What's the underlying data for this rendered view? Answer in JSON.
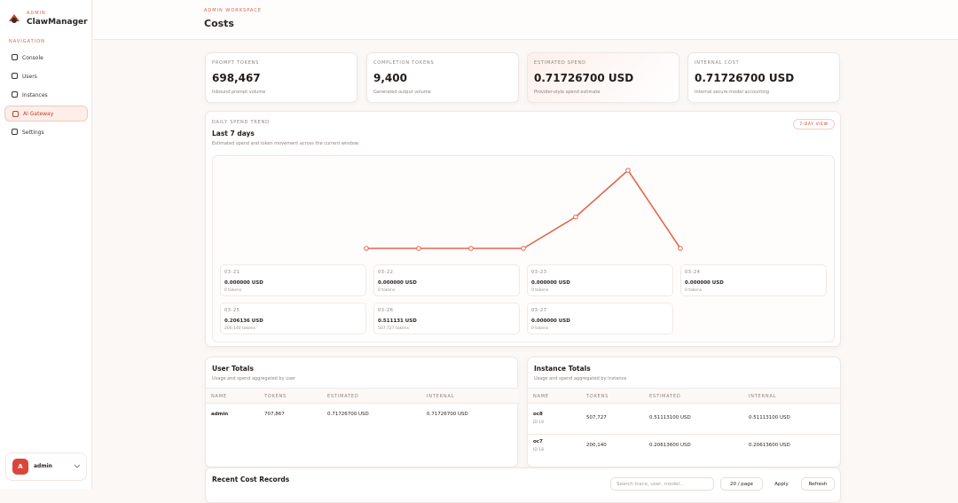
{
  "sidebar": {
    "brand_kicker": "ADMIN",
    "brand": "ClawManager",
    "nav_heading": "NAVIGATION",
    "nav": [
      "Console",
      "Users",
      "Instances",
      "AI Gateway",
      "Settings"
    ],
    "active_nav": 3,
    "user": {
      "avatar": "A",
      "name": "admin"
    }
  },
  "header": {
    "kicker": "ADMIN WORKSPACE",
    "title": "Costs"
  },
  "stats": [
    {
      "label": "PROMPT TOKENS",
      "value": "698,467",
      "note": "Inbound prompt volume"
    },
    {
      "label": "COMPLETION TOKENS",
      "value": "9,400",
      "note": "Generated output volume"
    },
    {
      "label": "ESTIMATED SPEND",
      "value": "0.71726700 USD",
      "note": "Provider-style spend estimate"
    },
    {
      "label": "INTERNAL COST",
      "value": "0.71726700 USD",
      "note": "Internal secure-model accounting"
    }
  ],
  "trend": {
    "kicker": "DAILY SPEND TREND",
    "title": "Last 7 days",
    "subtitle": "Estimated spend and token movement across the current window.",
    "badge": "7-DAY VIEW",
    "days": [
      {
        "date": "03-21",
        "spend": 0,
        "spend_label": "0.000000 USD",
        "tokens_label": "0 tokens"
      },
      {
        "date": "03-22",
        "spend": 0,
        "spend_label": "0.000000 USD",
        "tokens_label": "0 tokens"
      },
      {
        "date": "03-23",
        "spend": 0,
        "spend_label": "0.000000 USD",
        "tokens_label": "0 tokens"
      },
      {
        "date": "03-24",
        "spend": 0,
        "spend_label": "0.000000 USD",
        "tokens_label": "0 tokens"
      },
      {
        "date": "03-25",
        "spend": 0.206136,
        "spend_label": "0.206136 USD",
        "tokens_label": "200,140 tokens"
      },
      {
        "date": "03-26",
        "spend": 0.511131,
        "spend_label": "0.511131 USD",
        "tokens_label": "507,727 tokens"
      },
      {
        "date": "03-27",
        "spend": 0,
        "spend_label": "0.000000 USD",
        "tokens_label": "0 tokens"
      }
    ]
  },
  "user_totals": {
    "title": "User Totals",
    "subtitle": "Usage and spend aggregated by user",
    "columns": [
      "NAME",
      "TOKENS",
      "ESTIMATED",
      "INTERNAL"
    ],
    "rows": [
      [
        "admin",
        "707,867",
        "0.71726700 USD",
        "0.71726700 USD"
      ]
    ]
  },
  "instance_totals": {
    "title": "Instance Totals",
    "subtitle": "Usage and spend aggregated by instance",
    "columns": [
      "NAME",
      "TOKENS",
      "ESTIMATED",
      "INTERNAL"
    ],
    "rows": [
      {
        "name": "oc8",
        "id": "ID 19",
        "tokens": "507,727",
        "estimated": "0.51113100 USD",
        "internal": "0.51113100 USD"
      },
      {
        "name": "oc7",
        "id": "ID 18",
        "tokens": "200,140",
        "estimated": "0.20613600 USD",
        "internal": "0.20613600 USD"
      }
    ]
  },
  "records": {
    "title": "Recent Cost Records",
    "search_placeholder": "Search trace, user, model...",
    "page_size": "20 / page",
    "apply": "Apply",
    "refresh": "Refresh"
  }
}
